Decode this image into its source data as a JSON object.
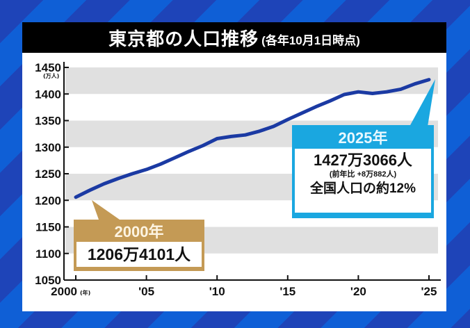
{
  "title": {
    "main": "東京都の人口推移",
    "sub": "(各年10月1日時点)"
  },
  "axes": {
    "y_unit": "(万人)",
    "x_unit": "(年)",
    "y_ticks": [
      "1450",
      "1400",
      "1350",
      "1300",
      "1250",
      "1200",
      "1150",
      "1100",
      "1050"
    ],
    "x_ticks": [
      "2000",
      "'05",
      "'10",
      "'15",
      "'20",
      "'25"
    ]
  },
  "callouts": {
    "start": {
      "year": "2000年",
      "value": "1206万4101人"
    },
    "end": {
      "year": "2025年",
      "value": "1427万3066人",
      "yoy": "(前年比 +8万882人)",
      "share": "全国人口の約12%"
    }
  },
  "colors": {
    "line": "#1b3aa3",
    "band": "#e0e0e0",
    "start_callout": "#c49a55",
    "end_callout": "#1aa7e0",
    "title_bar": "#000000"
  },
  "chart_data": {
    "type": "line",
    "title": "東京都の人口推移 (各年10月1日時点)",
    "xlabel": "(年)",
    "ylabel": "(万人)",
    "ylim": [
      1050,
      1450
    ],
    "x_tick_labels": [
      "2000",
      "'05",
      "'10",
      "'15",
      "'20",
      "'25"
    ],
    "grid": "alternating horizontal gray bands every 50",
    "x": [
      2000,
      2001,
      2002,
      2003,
      2004,
      2005,
      2006,
      2007,
      2008,
      2009,
      2010,
      2011,
      2012,
      2013,
      2014,
      2015,
      2016,
      2017,
      2018,
      2019,
      2020,
      2021,
      2022,
      2023,
      2024,
      2025
    ],
    "series": [
      {
        "name": "東京都の人口 (万人)",
        "values": [
          1206,
          1219,
          1231,
          1241,
          1250,
          1258,
          1268,
          1280,
          1292,
          1303,
          1316,
          1320,
          1323,
          1330,
          1339,
          1352,
          1364,
          1376,
          1387,
          1399,
          1404,
          1401,
          1404,
          1409,
          1419,
          1427
        ]
      }
    ],
    "annotations": [
      {
        "x": 2000,
        "label": "2000年",
        "text": "1206万4101人"
      },
      {
        "x": 2025,
        "label": "2025年",
        "text": "1427万3066人",
        "note": "(前年比 +8万882人)",
        "extra": "全国人口の約12%"
      }
    ]
  }
}
